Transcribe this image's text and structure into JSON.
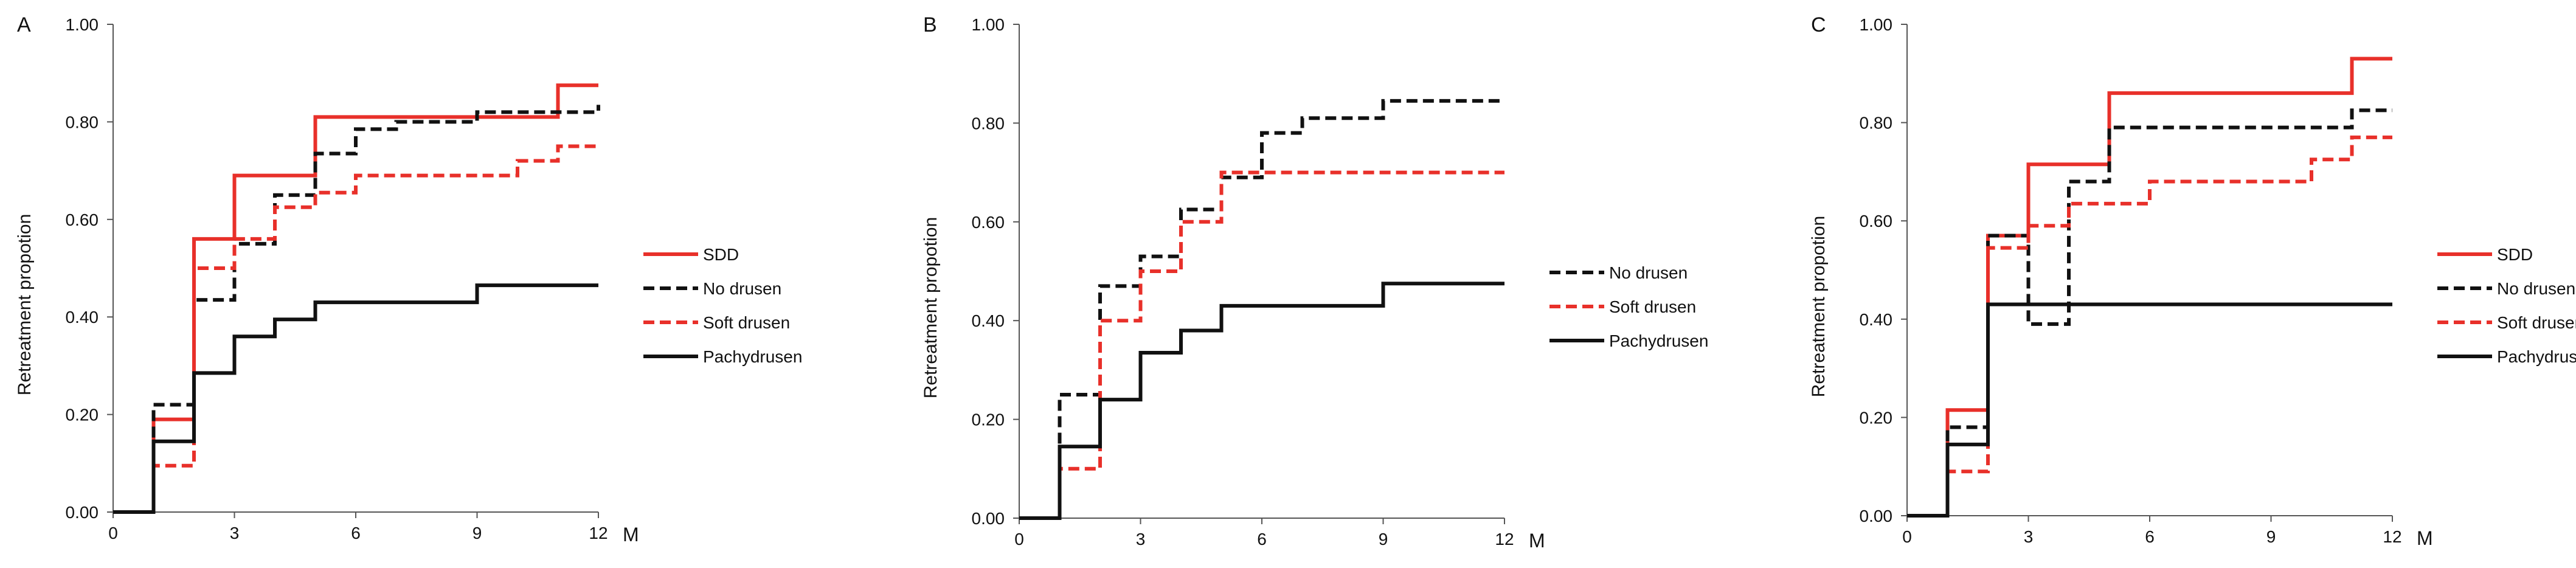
{
  "colors": {
    "red": "#e8302a",
    "black": "#111111",
    "axis": "#555555"
  },
  "chart_data": [
    {
      "panel": "A",
      "type": "line",
      "step": true,
      "xlabel": "M",
      "ylabel": "Retreatment propotion",
      "xlim": [
        0,
        12
      ],
      "ylim": [
        0,
        1.0
      ],
      "xticks": [
        "0",
        "3",
        "6",
        "9",
        "12"
      ],
      "yticks": [
        "0.00",
        "0.20",
        "0.40",
        "0.60",
        "0.80",
        "1.00"
      ],
      "grid": false,
      "legend": "right",
      "series": [
        {
          "name": "SDD",
          "color": "red",
          "dash": false,
          "x": [
            0,
            1,
            2,
            3,
            5,
            11,
            12
          ],
          "y": [
            0,
            0.19,
            0.56,
            0.69,
            0.81,
            0.875,
            0.875
          ]
        },
        {
          "name": "No drusen",
          "color": "black",
          "dash": true,
          "x": [
            0,
            1,
            2,
            3,
            4,
            5,
            6,
            7,
            9,
            12
          ],
          "y": [
            0,
            0.22,
            0.435,
            0.55,
            0.65,
            0.735,
            0.785,
            0.8,
            0.82,
            0.835
          ]
        },
        {
          "name": "Soft drusen",
          "color": "red",
          "dash": true,
          "x": [
            0,
            1,
            2,
            3,
            4,
            5,
            6,
            10,
            11,
            12
          ],
          "y": [
            0,
            0.095,
            0.5,
            0.56,
            0.625,
            0.655,
            0.69,
            0.72,
            0.75,
            0.75
          ]
        },
        {
          "name": "Pachydrusen",
          "color": "black",
          "dash": false,
          "x": [
            0,
            1,
            2,
            3,
            4,
            5,
            9,
            12
          ],
          "y": [
            0,
            0.145,
            0.285,
            0.36,
            0.395,
            0.43,
            0.465,
            0.465
          ]
        }
      ]
    },
    {
      "panel": "B",
      "type": "line",
      "step": true,
      "xlabel": "M",
      "ylabel": "Retreatment propotion",
      "xlim": [
        0,
        12
      ],
      "ylim": [
        0,
        1.0
      ],
      "xticks": [
        "0",
        "3",
        "6",
        "9",
        "12"
      ],
      "yticks": [
        "0.00",
        "0.20",
        "0.40",
        "0.60",
        "0.80",
        "1.00"
      ],
      "grid": false,
      "legend": "right",
      "series": [
        {
          "name": "No drusen",
          "color": "black",
          "dash": true,
          "x": [
            0,
            1,
            2,
            3,
            4,
            5,
            6,
            7,
            9,
            12
          ],
          "y": [
            0,
            0.25,
            0.47,
            0.53,
            0.625,
            0.69,
            0.78,
            0.81,
            0.845,
            0.845
          ]
        },
        {
          "name": "Soft drusen",
          "color": "red",
          "dash": true,
          "x": [
            0,
            1,
            2,
            3,
            4,
            5,
            12
          ],
          "y": [
            0,
            0.1,
            0.4,
            0.5,
            0.6,
            0.7,
            0.7
          ]
        },
        {
          "name": "Pachydrusen",
          "color": "black",
          "dash": false,
          "x": [
            0,
            1,
            2,
            3,
            4,
            5,
            9,
            12
          ],
          "y": [
            0,
            0.145,
            0.24,
            0.335,
            0.38,
            0.43,
            0.475,
            0.475
          ]
        }
      ]
    },
    {
      "panel": "C",
      "type": "line",
      "step": true,
      "xlabel": "M",
      "ylabel": "Retreatment propotion",
      "xlim": [
        0,
        12
      ],
      "ylim": [
        0,
        1.0
      ],
      "xticks": [
        "0",
        "3",
        "6",
        "9",
        "12"
      ],
      "yticks": [
        "0.00",
        "0.20",
        "0.40",
        "0.60",
        "0.80",
        "1.00"
      ],
      "grid": false,
      "legend": "right",
      "series": [
        {
          "name": "SDD",
          "color": "red",
          "dash": false,
          "x": [
            0,
            1,
            2,
            3,
            5,
            11,
            12
          ],
          "y": [
            0,
            0.215,
            0.57,
            0.715,
            0.86,
            0.93,
            0.93
          ]
        },
        {
          "name": "No drusen",
          "color": "black",
          "dash": true,
          "x": [
            0,
            1,
            2,
            3,
            4,
            5,
            11,
            12
          ],
          "y": [
            0,
            0.18,
            0.57,
            0.39,
            0.68,
            0.79,
            0.825,
            0.825
          ]
        },
        {
          "name": "Soft drusen",
          "color": "red",
          "dash": true,
          "x": [
            0,
            1,
            2,
            3,
            4,
            6,
            10,
            11,
            12
          ],
          "y": [
            0,
            0.09,
            0.545,
            0.59,
            0.635,
            0.68,
            0.725,
            0.77,
            0.77
          ]
        },
        {
          "name": "Pachydrusen",
          "color": "black",
          "dash": false,
          "x": [
            0,
            1,
            2,
            12
          ],
          "y": [
            0,
            0.145,
            0.43,
            0.43
          ]
        }
      ]
    }
  ]
}
